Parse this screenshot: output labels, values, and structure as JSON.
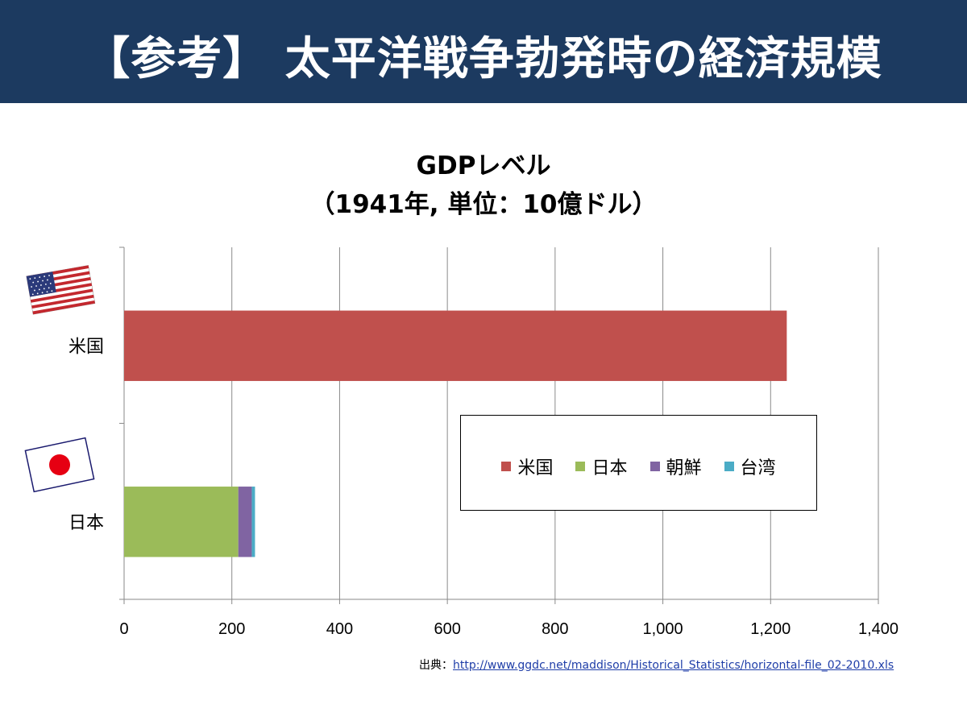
{
  "header": {
    "title": "【参考】 太平洋戦争勃発時の経済規模"
  },
  "chart_data": {
    "type": "bar",
    "orientation": "horizontal",
    "stacked": true,
    "title_line1": "GDPレベル",
    "title_line2": "（1941年, 単位：10億ドル）",
    "categories": [
      "米国",
      "日本"
    ],
    "series": [
      {
        "name": "米国",
        "color": "#c0504d",
        "values": [
          1230,
          0
        ]
      },
      {
        "name": "日本",
        "color": "#9bbb59",
        "values": [
          0,
          212
        ]
      },
      {
        "name": "朝鮮",
        "color": "#8064a2",
        "values": [
          0,
          25
        ]
      },
      {
        "name": "台湾",
        "color": "#4bacc6",
        "values": [
          0,
          6
        ]
      }
    ],
    "xlim": [
      0,
      1400
    ],
    "x_ticks": [
      "0",
      "200",
      "400",
      "600",
      "800",
      "1,000",
      "1,200",
      "1,400"
    ],
    "grid": true,
    "legend_position": "right-inside"
  },
  "flags": {
    "usa": "usa-flag-icon",
    "japan": "japan-flag-icon"
  },
  "source": {
    "prefix": "出典：",
    "url": "http://www.ggdc.net/maddison/Historical_Statistics/horizontal-file_02-2010.xls"
  }
}
